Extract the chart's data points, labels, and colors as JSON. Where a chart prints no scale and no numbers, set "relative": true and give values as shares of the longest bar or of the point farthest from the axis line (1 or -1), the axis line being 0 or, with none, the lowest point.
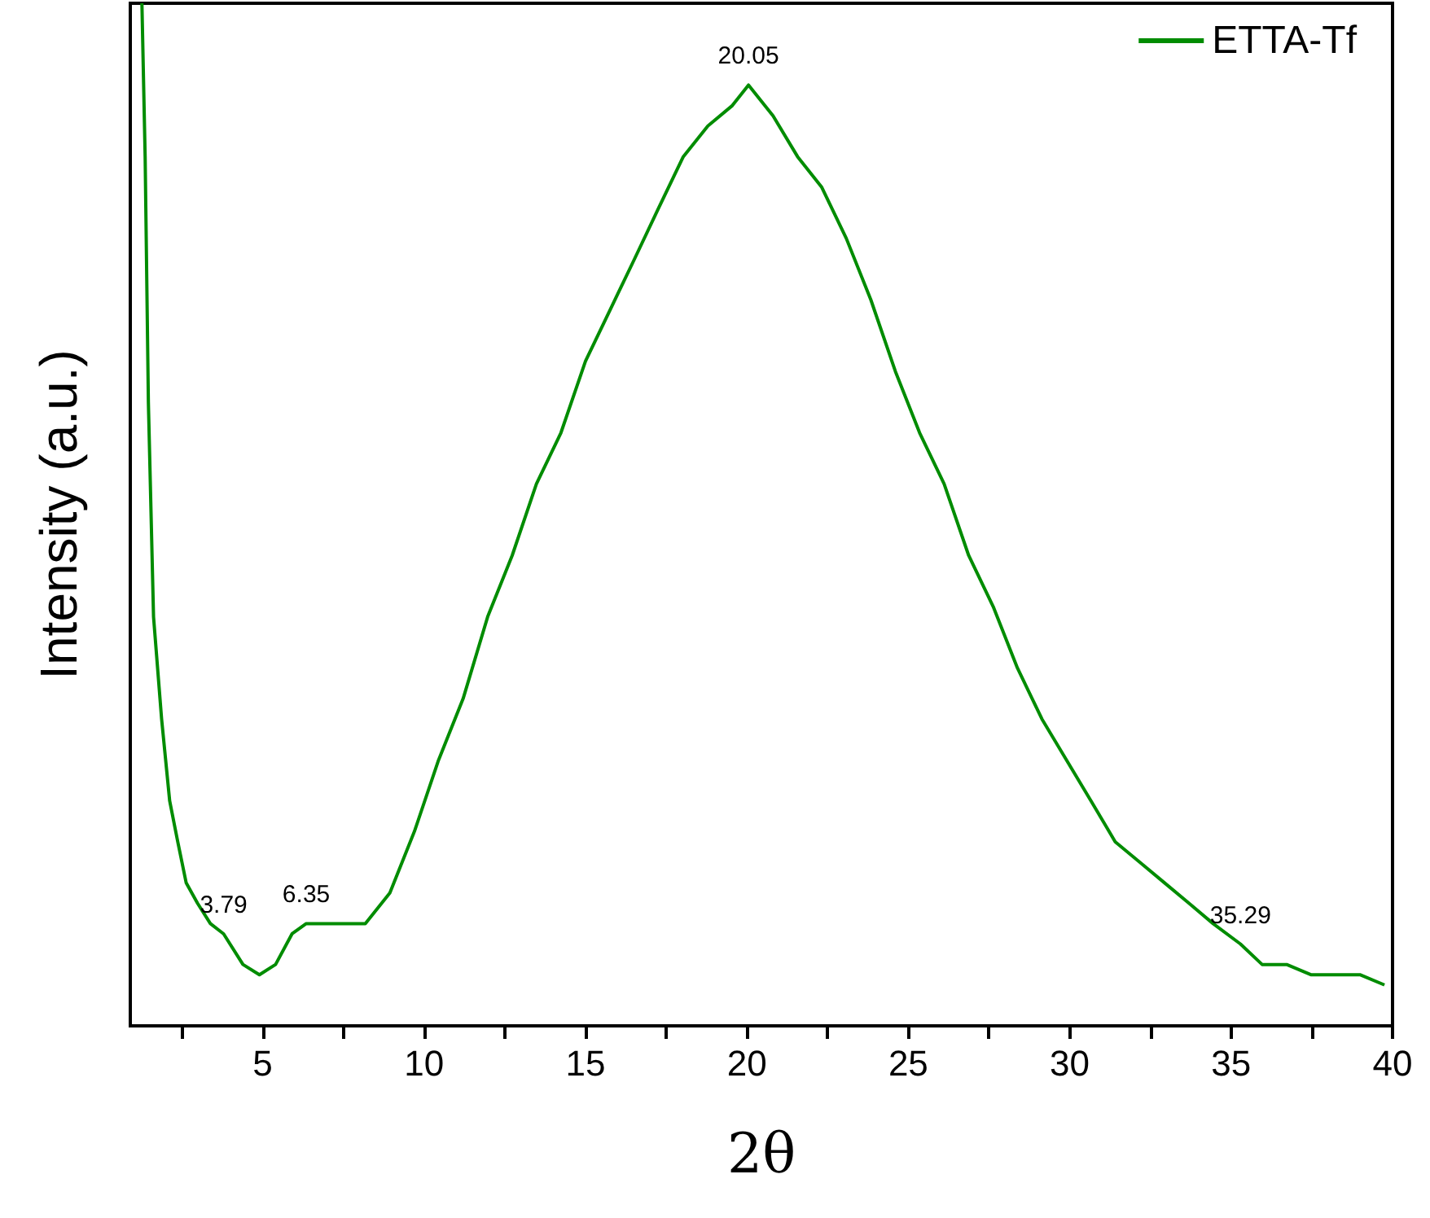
{
  "chart_data": {
    "type": "line",
    "xlabel": "2θ",
    "ylabel": "Intensity (a.u.)",
    "relative": true,
    "legend": "top right",
    "marker": "none",
    "line_style": "solid",
    "grid": false,
    "tick_labels": "x",
    "xlim": [
      0.9,
      40
    ],
    "xticks": [
      {
        "value": 2.5,
        "label": null
      },
      5,
      {
        "value": 7.5,
        "label": null
      },
      10,
      {
        "value": 12.5,
        "label": null
      },
      15,
      {
        "value": 17.5,
        "label": null
      },
      20,
      {
        "value": 22.5,
        "label": null
      },
      25,
      {
        "value": 27.5,
        "label": null
      },
      30,
      {
        "value": 32.5,
        "label": null
      },
      35,
      {
        "value": 37.5,
        "label": null
      },
      40
    ],
    "annotations": [
      {
        "text": "3.79",
        "x": 3.79,
        "y": 0.09
      },
      {
        "text": "6.35",
        "x": 6.35,
        "y": 0.1
      },
      {
        "text": "20.05",
        "x": 20.05,
        "y": 0.92
      },
      {
        "text": "35.29",
        "x": 35.29,
        "y": 0.08
      }
    ],
    "series": [
      {
        "name": "ETTA-Tf",
        "color": "#008c00",
        "x": [
          1.26,
          1.36,
          1.46,
          1.62,
          1.87,
          2.12,
          2.37,
          2.63,
          2.98,
          3.38,
          3.79,
          4.39,
          4.9,
          5.4,
          5.91,
          6.35,
          7.42,
          8.18,
          8.94,
          9.7,
          10.45,
          11.21,
          11.97,
          12.73,
          13.48,
          14.24,
          15.0,
          15.76,
          16.52,
          17.27,
          18.03,
          18.79,
          19.55,
          20.05,
          20.81,
          21.57,
          22.32,
          23.08,
          23.84,
          24.6,
          25.35,
          26.11,
          26.87,
          27.63,
          28.38,
          29.14,
          29.9,
          30.66,
          31.41,
          32.17,
          32.93,
          33.69,
          34.44,
          35.29,
          35.96,
          36.72,
          37.47,
          38.23,
          38.99,
          39.75
        ],
        "values": [
          1.0,
          0.85,
          0.61,
          0.4,
          0.3,
          0.22,
          0.18,
          0.14,
          0.12,
          0.1,
          0.09,
          0.06,
          0.05,
          0.06,
          0.09,
          0.1,
          0.1,
          0.1,
          0.13,
          0.19,
          0.26,
          0.32,
          0.4,
          0.46,
          0.53,
          0.58,
          0.65,
          0.7,
          0.75,
          0.8,
          0.85,
          0.88,
          0.9,
          0.92,
          0.89,
          0.85,
          0.82,
          0.77,
          0.71,
          0.64,
          0.58,
          0.53,
          0.46,
          0.41,
          0.35,
          0.3,
          0.26,
          0.22,
          0.18,
          0.16,
          0.14,
          0.12,
          0.1,
          0.08,
          0.06,
          0.06,
          0.05,
          0.05,
          0.05,
          0.04
        ]
      }
    ]
  }
}
